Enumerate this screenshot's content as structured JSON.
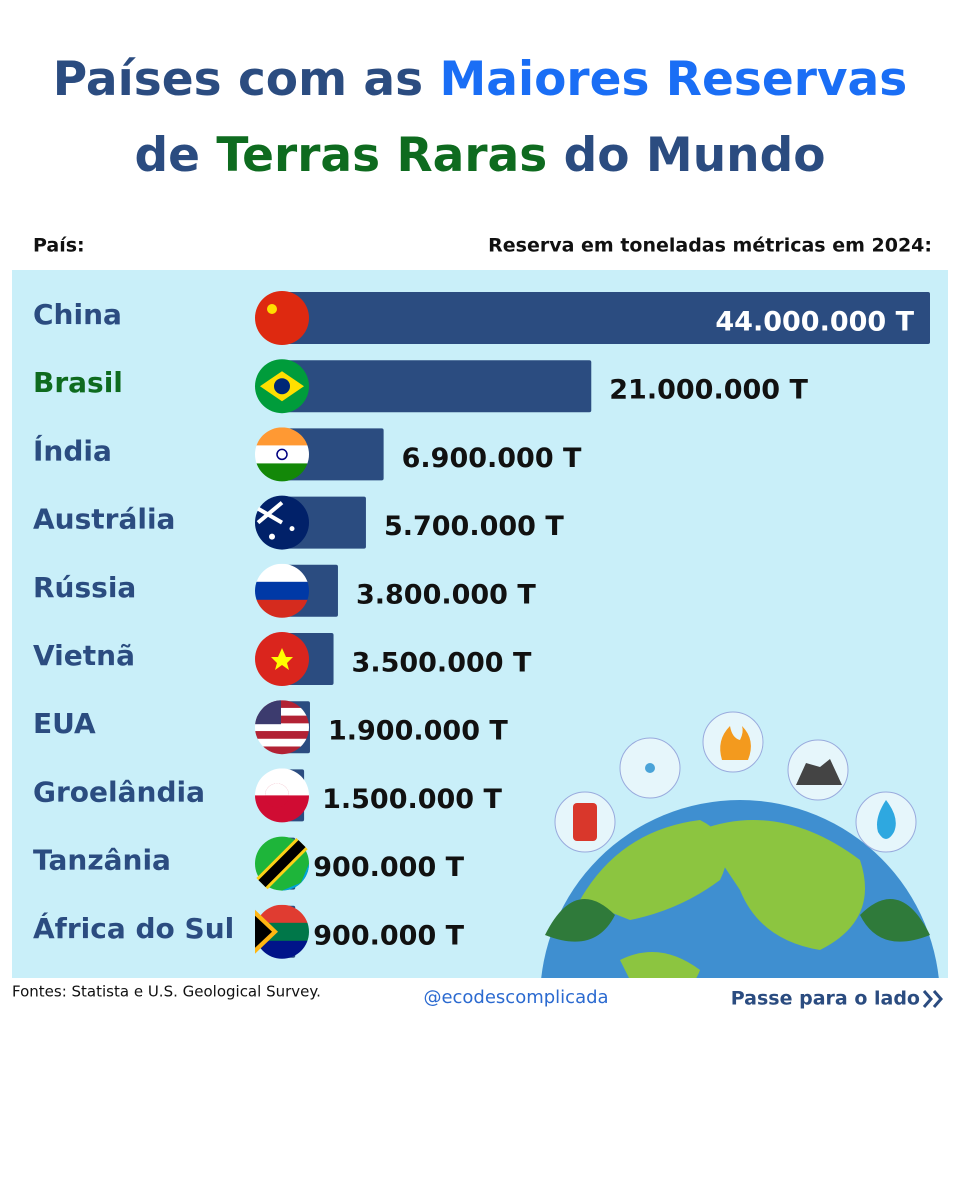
{
  "chart_data": {
    "type": "bar",
    "orientation": "horizontal",
    "title": [
      {
        "text": "Países com as",
        "color": "#2b4c80"
      },
      {
        "text": "Maiores Reservas",
        "color": "#1a6ef5"
      },
      {
        "text": "de",
        "color": "#2b4c80"
      },
      {
        "text": "Terras Raras",
        "color": "#0e6b1f"
      },
      {
        "text": "do Mundo",
        "color": "#2b4c80"
      }
    ],
    "category_header": "País:",
    "value_header": "Reserva em toneladas métricas em 2024:",
    "categories": [
      "China",
      "Brasil",
      "Índia",
      "Austrália",
      "Rússia",
      "Vietnã",
      "EUA",
      "Groelândia",
      "Tanzânia",
      "África do Sul"
    ],
    "category_colors": [
      "#2b4c80",
      "#0e6b1f",
      "#2b4c80",
      "#2b4c80",
      "#2b4c80",
      "#2b4c80",
      "#2b4c80",
      "#2b4c80",
      "#2b4c80",
      "#2b4c80"
    ],
    "values": [
      44000000,
      21000000,
      6900000,
      5700000,
      3800000,
      3500000,
      1900000,
      1500000,
      900000,
      900000
    ],
    "value_labels": [
      "44.000.000 T",
      "21.000.000 T",
      "6.900.000 T",
      "5.700.000 T",
      "3.800.000 T",
      "3.500.000 T",
      "1.900.000 T",
      "1.500.000 T",
      "900.000 T",
      "900.000 T"
    ],
    "color": "#2b4c80",
    "source": "Fontes: Statista e U.S. Geological Survey.",
    "handle": "@ecodescomplicada",
    "next": "Passe para o lado"
  }
}
